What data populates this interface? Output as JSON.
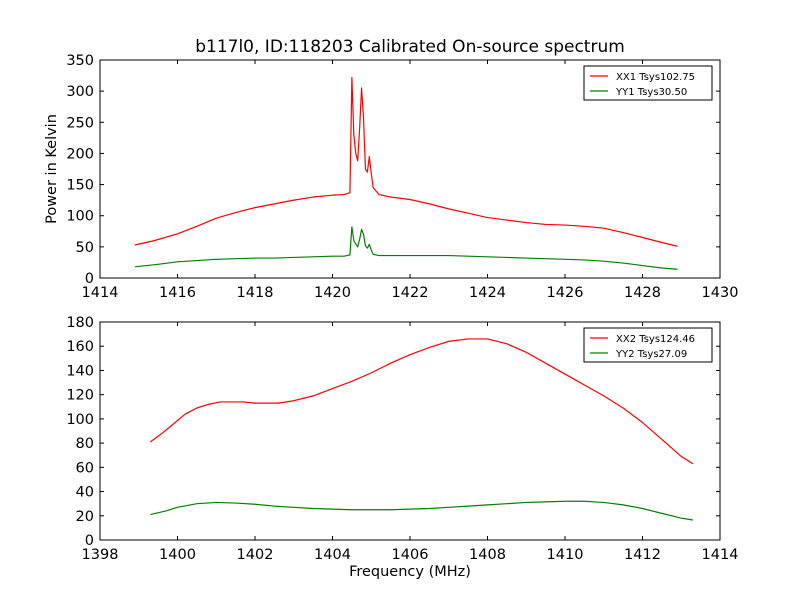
{
  "figure": {
    "title": "b117l0, ID:118203 Calibrated On-source spectrum",
    "shared_xlabel": "Frequency (MHz)"
  },
  "chart_data": [
    {
      "type": "line",
      "ylabel": "Power in Kelvin",
      "xlabel": "",
      "xlim": [
        1414,
        1430
      ],
      "ylim": [
        0,
        350
      ],
      "xticks": [
        1414,
        1416,
        1418,
        1420,
        1422,
        1424,
        1426,
        1428,
        1430
      ],
      "yticks": [
        0,
        50,
        100,
        150,
        200,
        250,
        300,
        350
      ],
      "legend_position": "top-right",
      "series": [
        {
          "name": "XX1 Tsys102.75",
          "color": "#ff0000",
          "points": [
            [
              1414.9,
              53
            ],
            [
              1415.4,
              60
            ],
            [
              1416.0,
              71
            ],
            [
              1416.5,
              83
            ],
            [
              1417.0,
              96
            ],
            [
              1417.5,
              105
            ],
            [
              1418.0,
              113
            ],
            [
              1418.5,
              119
            ],
            [
              1419.0,
              125
            ],
            [
              1419.5,
              130
            ],
            [
              1420.0,
              133
            ],
            [
              1420.3,
              134
            ],
            [
              1420.45,
              137
            ],
            [
              1420.5,
              322
            ],
            [
              1420.55,
              230
            ],
            [
              1420.6,
              200
            ],
            [
              1420.65,
              188
            ],
            [
              1420.7,
              240
            ],
            [
              1420.75,
              305
            ],
            [
              1420.8,
              258
            ],
            [
              1420.85,
              175
            ],
            [
              1420.9,
              170
            ],
            [
              1420.95,
              195
            ],
            [
              1421.0,
              168
            ],
            [
              1421.05,
              145
            ],
            [
              1421.2,
              134
            ],
            [
              1421.5,
              130
            ],
            [
              1422.0,
              126
            ],
            [
              1422.5,
              119
            ],
            [
              1423.0,
              111
            ],
            [
              1423.5,
              104
            ],
            [
              1424.0,
              97
            ],
            [
              1424.5,
              93
            ],
            [
              1425.0,
              89
            ],
            [
              1425.5,
              86
            ],
            [
              1426.0,
              85
            ],
            [
              1426.5,
              83
            ],
            [
              1427.0,
              80
            ],
            [
              1427.5,
              73
            ],
            [
              1428.0,
              65
            ],
            [
              1428.5,
              57
            ],
            [
              1428.9,
              51
            ]
          ]
        },
        {
          "name": "YY1 Tsys30.50",
          "color": "#008000",
          "points": [
            [
              1414.9,
              18
            ],
            [
              1415.5,
              22
            ],
            [
              1416.0,
              26
            ],
            [
              1416.5,
              28
            ],
            [
              1417.0,
              30
            ],
            [
              1417.5,
              31
            ],
            [
              1418.0,
              32
            ],
            [
              1418.5,
              32
            ],
            [
              1419.0,
              33
            ],
            [
              1419.5,
              34
            ],
            [
              1420.0,
              35
            ],
            [
              1420.3,
              35
            ],
            [
              1420.45,
              37
            ],
            [
              1420.5,
              82
            ],
            [
              1420.55,
              60
            ],
            [
              1420.6,
              55
            ],
            [
              1420.65,
              50
            ],
            [
              1420.7,
              62
            ],
            [
              1420.75,
              78
            ],
            [
              1420.8,
              70
            ],
            [
              1420.85,
              52
            ],
            [
              1420.9,
              48
            ],
            [
              1420.95,
              54
            ],
            [
              1421.0,
              45
            ],
            [
              1421.05,
              38
            ],
            [
              1421.2,
              36
            ],
            [
              1421.5,
              36
            ],
            [
              1422.0,
              36
            ],
            [
              1422.5,
              36
            ],
            [
              1423.0,
              36
            ],
            [
              1423.5,
              35
            ],
            [
              1424.0,
              34
            ],
            [
              1424.5,
              33
            ],
            [
              1425.0,
              32
            ],
            [
              1425.5,
              31
            ],
            [
              1426.0,
              30
            ],
            [
              1426.5,
              29
            ],
            [
              1427.0,
              27
            ],
            [
              1427.5,
              24
            ],
            [
              1428.0,
              20
            ],
            [
              1428.5,
              16
            ],
            [
              1428.9,
              14
            ]
          ]
        }
      ]
    },
    {
      "type": "line",
      "ylabel": "",
      "xlabel": "Frequency (MHz)",
      "xlim": [
        1398,
        1414
      ],
      "ylim": [
        0,
        180
      ],
      "xticks": [
        1398,
        1400,
        1402,
        1404,
        1406,
        1408,
        1410,
        1412,
        1414
      ],
      "yticks": [
        0,
        20,
        40,
        60,
        80,
        100,
        120,
        140,
        160,
        180
      ],
      "legend_position": "top-right",
      "series": [
        {
          "name": "XX2 Tsys124.46",
          "color": "#ff0000",
          "points": [
            [
              1399.3,
              81
            ],
            [
              1399.6,
              88
            ],
            [
              1399.9,
              96
            ],
            [
              1400.2,
              104
            ],
            [
              1400.5,
              109
            ],
            [
              1400.8,
              112
            ],
            [
              1401.1,
              114
            ],
            [
              1401.4,
              114
            ],
            [
              1401.7,
              114
            ],
            [
              1402.0,
              113
            ],
            [
              1402.3,
              113
            ],
            [
              1402.6,
              113
            ],
            [
              1403.0,
              115
            ],
            [
              1403.5,
              119
            ],
            [
              1404.0,
              125
            ],
            [
              1404.5,
              131
            ],
            [
              1405.0,
              138
            ],
            [
              1405.5,
              146
            ],
            [
              1406.0,
              153
            ],
            [
              1406.5,
              159
            ],
            [
              1407.0,
              164
            ],
            [
              1407.5,
              166
            ],
            [
              1408.0,
              166
            ],
            [
              1408.5,
              162
            ],
            [
              1409.0,
              155
            ],
            [
              1409.5,
              146
            ],
            [
              1410.0,
              137
            ],
            [
              1410.5,
              128
            ],
            [
              1411.0,
              119
            ],
            [
              1411.5,
              109
            ],
            [
              1412.0,
              97
            ],
            [
              1412.5,
              83
            ],
            [
              1413.0,
              69
            ],
            [
              1413.3,
              63
            ]
          ]
        },
        {
          "name": "YY2 Tsys27.09",
          "color": "#008000",
          "points": [
            [
              1399.3,
              21
            ],
            [
              1399.7,
              24
            ],
            [
              1400.0,
              27
            ],
            [
              1400.5,
              30
            ],
            [
              1401.0,
              31
            ],
            [
              1401.5,
              30.5
            ],
            [
              1402.0,
              29.5
            ],
            [
              1402.5,
              28
            ],
            [
              1403.0,
              27
            ],
            [
              1403.5,
              26
            ],
            [
              1404.0,
              25.5
            ],
            [
              1404.5,
              25
            ],
            [
              1405.0,
              25
            ],
            [
              1405.5,
              25
            ],
            [
              1406.0,
              25.5
            ],
            [
              1406.5,
              26
            ],
            [
              1407.0,
              27
            ],
            [
              1407.5,
              28
            ],
            [
              1408.0,
              29
            ],
            [
              1408.5,
              30
            ],
            [
              1409.0,
              31
            ],
            [
              1409.5,
              31.5
            ],
            [
              1410.0,
              32
            ],
            [
              1410.5,
              32
            ],
            [
              1411.0,
              31
            ],
            [
              1411.5,
              29
            ],
            [
              1412.0,
              26
            ],
            [
              1412.5,
              22
            ],
            [
              1413.0,
              18
            ],
            [
              1413.3,
              16.5
            ]
          ]
        }
      ]
    }
  ]
}
